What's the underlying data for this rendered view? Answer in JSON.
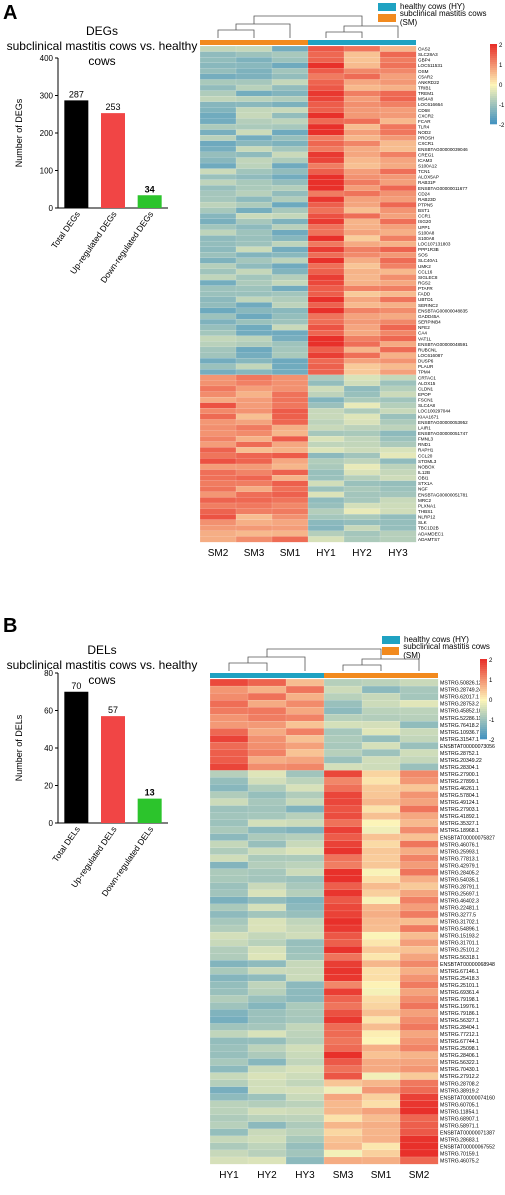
{
  "panels": {
    "a": {
      "letter": "A"
    },
    "b": {
      "letter": "B"
    }
  },
  "colors": {
    "healthy": "#1fa2c2",
    "subclinical": "#f28a1e",
    "bar_total": "#000000",
    "bar_up": "#f14545",
    "bar_down": "#2cc42c",
    "heat_high": "#e8302a",
    "heat_mid": "#fdf5b8",
    "heat_low": "#3c8fc0"
  },
  "chart_data": [
    {
      "type": "bar",
      "title": "DEGs",
      "subtitle": "subclinical mastitis cows vs. healthy cows",
      "categories": [
        "Total DEGs",
        "Up-regulated DEGs",
        "Down-regulated DEGs"
      ],
      "values": [
        287,
        253,
        34
      ],
      "data_labels": [
        "287",
        "253",
        "34"
      ],
      "ylabel": "Number of DEGs",
      "ylim": [
        0,
        400
      ],
      "yticks": [
        "0",
        "100",
        "200",
        "300",
        "400"
      ]
    },
    {
      "type": "heatmap",
      "legend": [
        "healthy cows (HY)",
        "subclinical mastitis cows (SM)"
      ],
      "columns": [
        "SM2",
        "SM3",
        "SM1",
        "HY1",
        "HY2",
        "HY3"
      ],
      "column_groups": [
        "subclinical",
        "subclinical",
        "subclinical",
        "healthy",
        "healthy",
        "healthy"
      ],
      "scale_ticks": [
        "2",
        "1",
        "0",
        "-1",
        "-2"
      ],
      "rows": [
        "OAS2",
        "SLC28A3",
        "GBP4",
        "LOC511531",
        "OSM",
        "C5AR2",
        "ANKRD22",
        "TRIB1",
        "TREM1",
        "MS4A8",
        "LOC616664",
        "CD68",
        "CXCR2",
        "FCAR",
        "TLR4",
        "NOD2",
        "PROSH",
        "CXCR1",
        "ENSBTAG00000039046",
        "CREG1",
        "ICAM3",
        "S100A12",
        "TCN1",
        "ALOX5AP",
        "RAB31P",
        "ENSBTAG00000011677",
        "CD24",
        "RAB23D",
        "PTPN5",
        "BST1",
        "CCR1",
        "ISG20",
        "UPP1",
        "S100A8",
        "S100A8",
        "LOC107131803",
        "PPP1R3B",
        "SOS",
        "SLC40A1",
        "UMK2",
        "CCL16",
        "SIGLEC8",
        "RGS2",
        "PTAFR",
        "FADD",
        "UBTD1",
        "SERINC2",
        "ENSBTAG00000048835",
        "GADD45A",
        "SERPINB4",
        "NFE2",
        "CA4",
        "VAT1L",
        "ENSBTAG00000048591",
        "RUBCNL",
        "LOC616087",
        "DUSP6",
        "PLAUR",
        "TPM4",
        "CRTAC1",
        "ALOX15",
        "CLDN1",
        "EPOP",
        "FSCN1",
        "SLC4A8",
        "LOC100297044",
        "KIAA1671",
        "ENSBTAG00000053952",
        "LAIR1",
        "ENSBTAG00000051747",
        "FMNL3",
        "RND1",
        "RAPH1",
        "CCL20",
        "STOML3",
        "NOBOX",
        "IL12B",
        "OBI1",
        "STX1A",
        "NGF",
        "ENSBTAG00000051781",
        "MRC2",
        "PLXNA1",
        "THBS1",
        "NLRP12",
        "SLK",
        "TBC1D2B",
        "ADAMDEC1",
        "ADAMTS7"
      ]
    },
    {
      "type": "bar",
      "title": "DELs",
      "subtitle": "subclinical mastitis cows vs. healthy cows",
      "categories": [
        "Total DELs",
        "Up-regulated DELs",
        "Down-regulated DELs"
      ],
      "values": [
        70,
        57,
        13
      ],
      "data_labels": [
        "70",
        "57",
        "13"
      ],
      "ylabel": "Number of DELs",
      "ylim": [
        0,
        80
      ],
      "yticks": [
        "0",
        "20",
        "40",
        "60",
        "80"
      ]
    },
    {
      "type": "heatmap",
      "legend": [
        "healthy cows (HY)",
        "subclinical mastitis cows (SM)"
      ],
      "columns": [
        "HY1",
        "HY2",
        "HY3",
        "SM3",
        "SM1",
        "SM2"
      ],
      "column_groups": [
        "healthy",
        "healthy",
        "healthy",
        "subclinical",
        "subclinical",
        "subclinical"
      ],
      "scale_ticks": [
        "2",
        "1",
        "0",
        "-1",
        "-2"
      ],
      "rows": [
        "MSTRG.50826.12",
        "MSTRG.28749.24",
        "MSTRG.62017.1",
        "MSTRG.28753.2",
        "MSTRG.45852.10",
        "MSTRG.52286.11",
        "MSTRG.76418.2",
        "MSTRG.10936.7",
        "MSTRG.31547.1",
        "ENSBTAT00000073056",
        "MSTRG.28752.1",
        "MSTRG.20349.22",
        "MSTRG.28304.1",
        "MSTRG.27900.1",
        "MSTRG.27899.1",
        "MSTRG.46261.1",
        "MSTRG.57804.1",
        "MSTRG.49124.1",
        "MSTRG.27903.1",
        "MSTRG.41892.1",
        "MSTRG.35327.1",
        "MSTRG.18968.1",
        "ENSBTAT00000075827",
        "MSTRG.46076.1",
        "MSTRG.25993.1",
        "MSTRG.77813.1",
        "MSTRG.42979.1",
        "MSTRG.28405.2",
        "MSTRG.54035.1",
        "MSTRG.28791.1",
        "MSTRG.25697.1",
        "MSTRG.46402.3",
        "MSTRG.22481.1",
        "MSTRG.3277.5",
        "MSTRG.31702.1",
        "MSTRG.54896.1",
        "MSTRG.15193.2",
        "MSTRG.31701.1",
        "MSTRG.25101.2",
        "MSTRG.56318.1",
        "ENSBTAT00000068948",
        "MSTRG.67146.1",
        "MSTRG.25418.3",
        "MSTRG.25101.1",
        "MSTRG.69361.4",
        "MSTRG.79198.1",
        "MSTRG.19976.1",
        "MSTRG.79186.1",
        "MSTRG.56327.1",
        "MSTRG.28404.1",
        "MSTRG.77212.1",
        "MSTRG.67744.1",
        "MSTRG.25098.1",
        "MSTRG.28406.1",
        "MSTRG.56322.1",
        "MSTRG.70430.1",
        "MSTRG.27912.2",
        "MSTRG.28708.2",
        "MSTRG.38919.2",
        "ENSBTAT00000074160",
        "MSTRG.60705.1",
        "MSTRG.11854.1",
        "MSTRG.68907.1",
        "MSTRG.58971.1",
        "ENSBTAT00000071387",
        "MSTRG.28683.1",
        "ENSBTAT00000067552",
        "MSTRG.70159.1",
        "MSTRG.46075.2"
      ]
    }
  ]
}
